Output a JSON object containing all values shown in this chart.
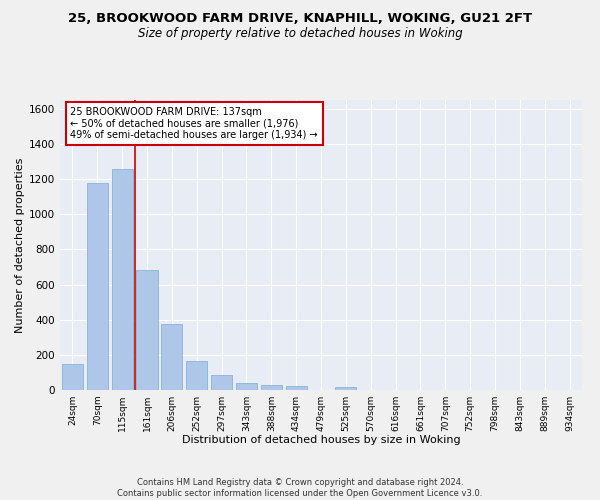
{
  "title1": "25, BROOKWOOD FARM DRIVE, KNAPHILL, WOKING, GU21 2FT",
  "title2": "Size of property relative to detached houses in Woking",
  "xlabel": "Distribution of detached houses by size in Woking",
  "ylabel": "Number of detached properties",
  "categories": [
    "24sqm",
    "70sqm",
    "115sqm",
    "161sqm",
    "206sqm",
    "252sqm",
    "297sqm",
    "343sqm",
    "388sqm",
    "434sqm",
    "479sqm",
    "525sqm",
    "570sqm",
    "616sqm",
    "661sqm",
    "707sqm",
    "752sqm",
    "798sqm",
    "843sqm",
    "889sqm",
    "934sqm"
  ],
  "values": [
    150,
    1175,
    1260,
    685,
    375,
    165,
    85,
    42,
    28,
    20,
    0,
    15,
    0,
    0,
    0,
    0,
    0,
    0,
    0,
    0,
    0
  ],
  "bar_color": "#aec6e8",
  "bar_edge_color": "#7aafd4",
  "vline_color": "#cc0000",
  "vline_pos": 2.5,
  "annotation_text": "25 BROOKWOOD FARM DRIVE: 137sqm\n← 50% of detached houses are smaller (1,976)\n49% of semi-detached houses are larger (1,934) →",
  "annotation_box_color": "#ffffff",
  "annotation_border_color": "#cc0000",
  "ylim": [
    0,
    1650
  ],
  "yticks": [
    0,
    200,
    400,
    600,
    800,
    1000,
    1200,
    1400,
    1600
  ],
  "bg_color": "#e8edf5",
  "grid_color": "#ffffff",
  "footer": "Contains HM Land Registry data © Crown copyright and database right 2024.\nContains public sector information licensed under the Open Government Licence v3.0.",
  "title1_fontsize": 9.5,
  "title2_fontsize": 8.5,
  "xlabel_fontsize": 8,
  "ylabel_fontsize": 8,
  "fig_bg": "#f0f0f0"
}
